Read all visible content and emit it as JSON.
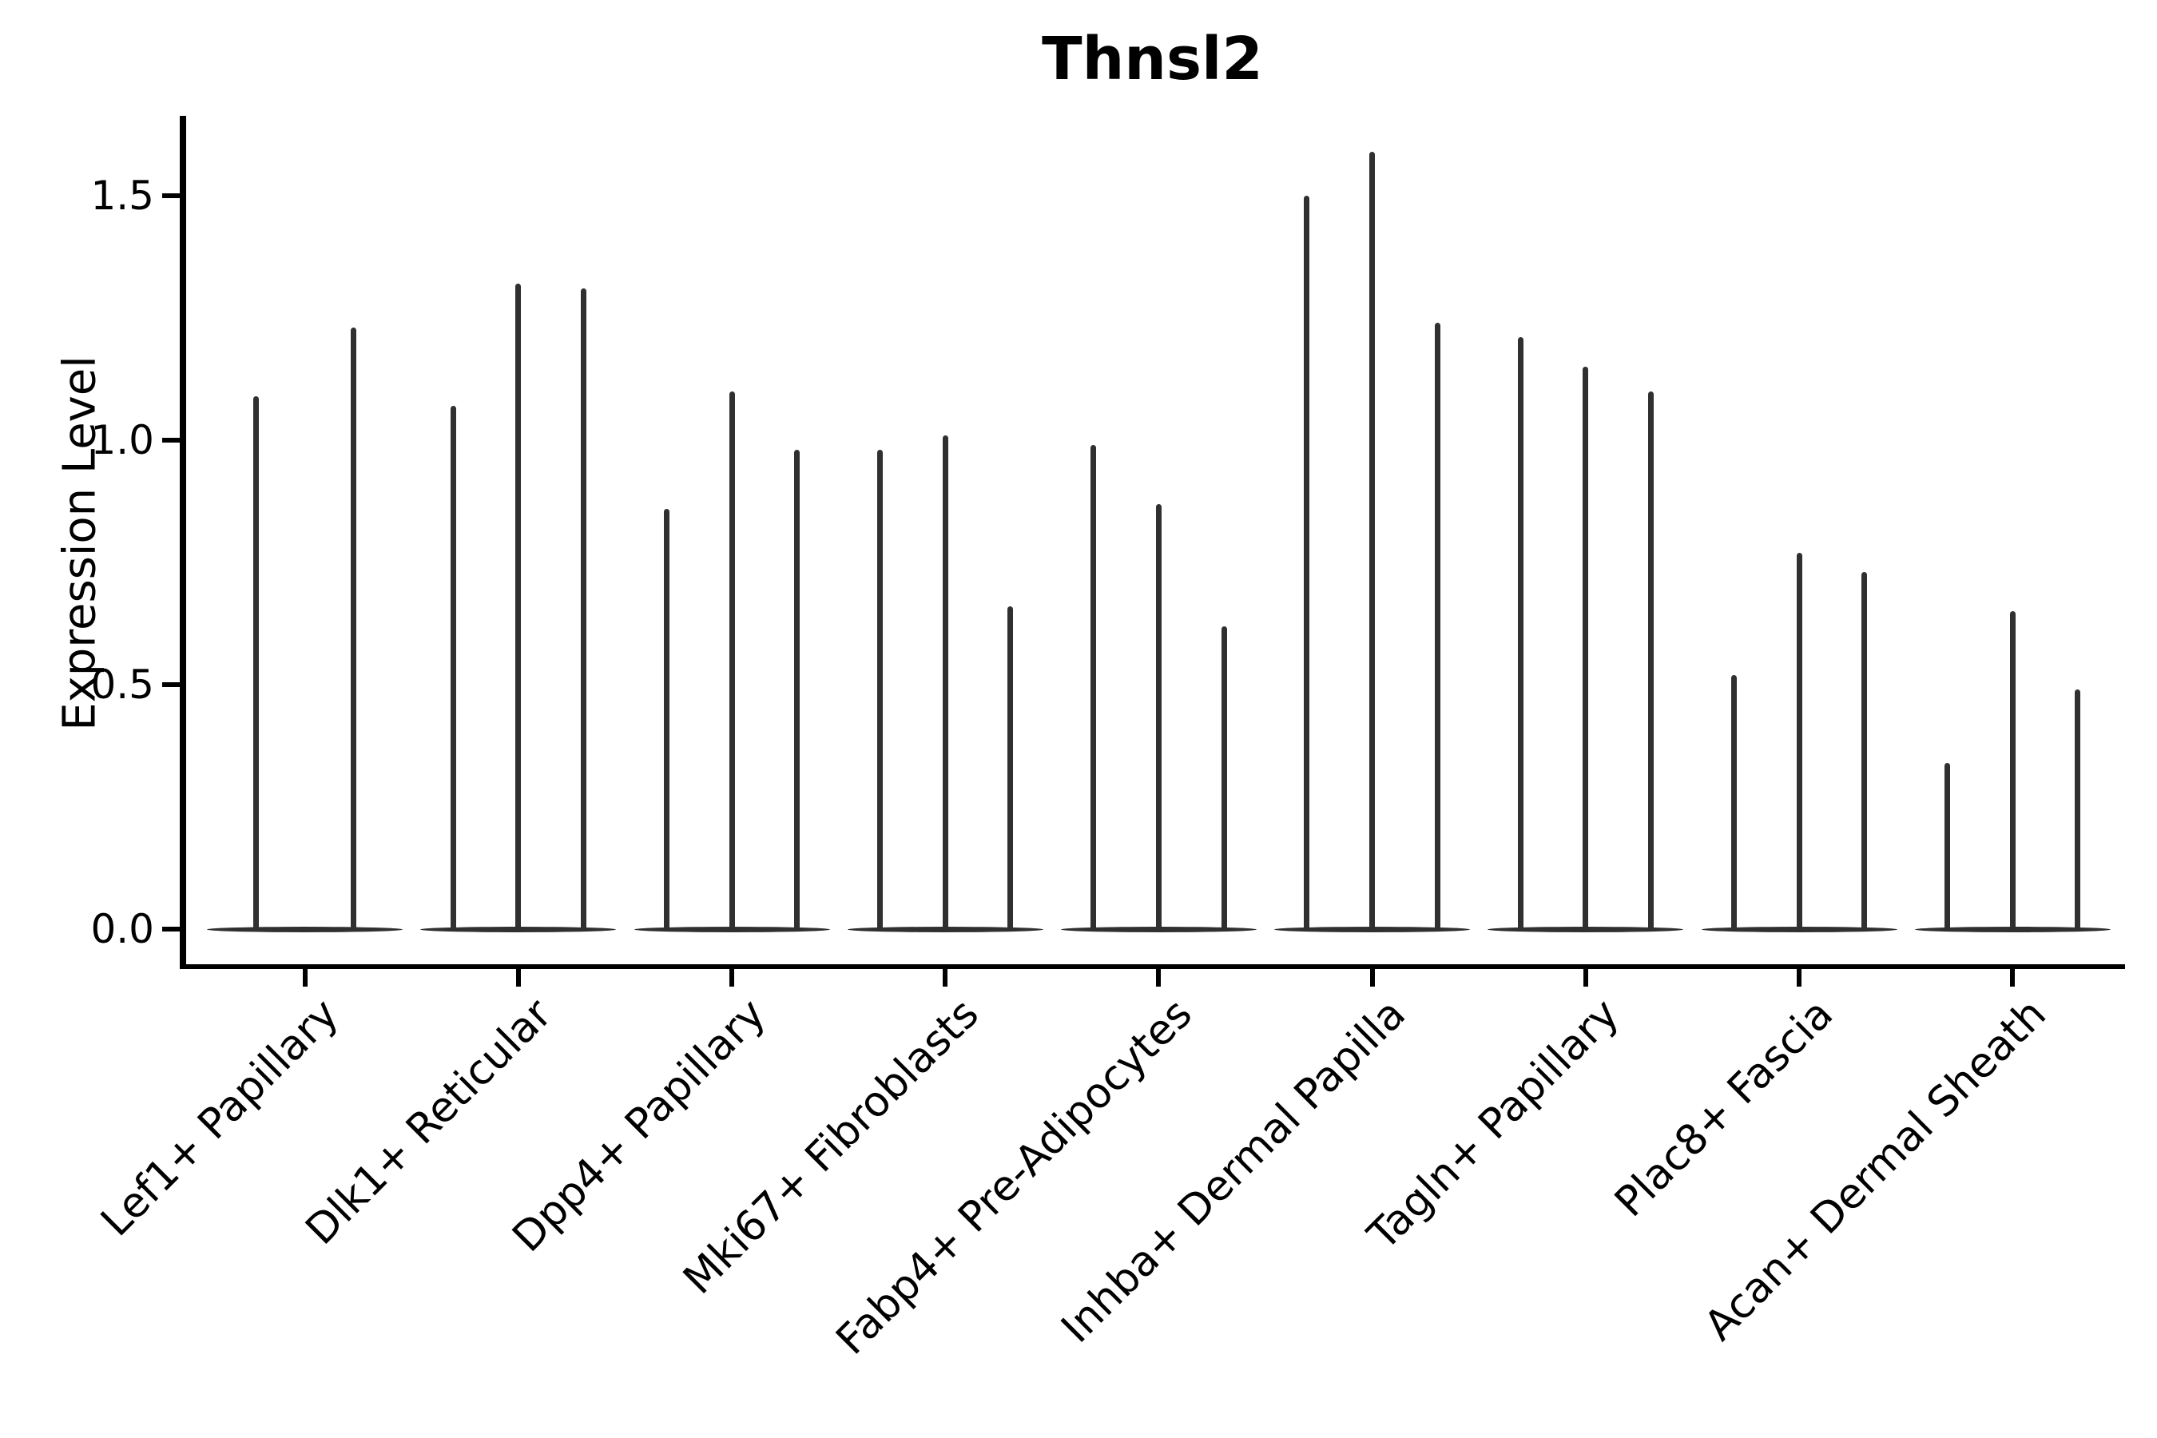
{
  "chart_data": {
    "type": "violin",
    "title": "Thnsl2",
    "xlabel": "",
    "ylabel": "Expression Level",
    "ylim": [
      -0.07,
      1.66
    ],
    "yticks": [
      0.0,
      0.5,
      1.0,
      1.5
    ],
    "ytick_labels": [
      "0.0",
      "0.5",
      "1.0",
      "1.5"
    ],
    "grid": false,
    "legend": "none",
    "categories": [
      "Lef1+ Papillary",
      "Dlk1+ Reticular",
      "Dpp4+ Papillary",
      "Mki67+ Fibroblasts",
      "Fabp4+ Pre-Adipocytes",
      "Inhba+ Dermal Papilla",
      "Tagln+ Papillary",
      "Plac8+ Fascia",
      "Acan+ Dermal Sheath"
    ],
    "violin_peaks": [
      [
        1.09,
        1.23
      ],
      [
        1.07,
        1.32,
        1.31
      ],
      [
        0.86,
        1.1,
        0.98
      ],
      [
        0.98,
        1.01,
        0.66
      ],
      [
        0.99,
        0.87,
        0.62
      ],
      [
        1.5,
        1.59,
        1.24
      ],
      [
        1.21,
        1.15,
        1.1
      ],
      [
        0.52,
        0.77,
        0.73
      ],
      [
        0.34,
        0.65,
        0.49
      ]
    ],
    "colors": {
      "violin": "#303030",
      "axis": "#000000",
      "text": "#000000",
      "background": "#ffffff"
    }
  }
}
